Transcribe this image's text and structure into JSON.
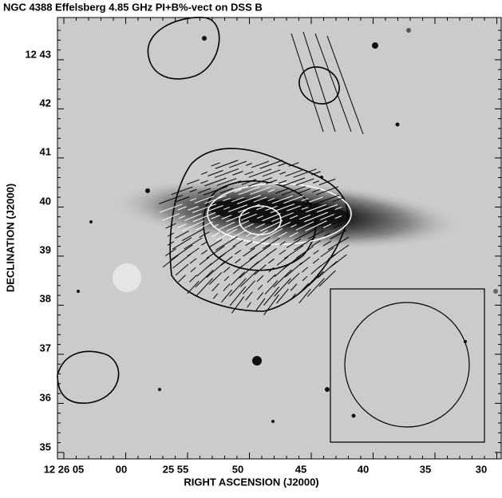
{
  "title": "NGC 4388 Effelsberg 4.85 GHz PI+B%-vect on DSS B",
  "x_axis": {
    "label": "RIGHT ASCENSION (J2000)",
    "ticks": [
      "12 26 05",
      "00",
      "25 55",
      "50",
      "45",
      "40",
      "35",
      "30"
    ]
  },
  "y_axis": {
    "label": "DECLINATION (J2000)",
    "ticks": [
      "12 43",
      "42",
      "41",
      "40",
      "39",
      "38",
      "37",
      "36",
      "35"
    ]
  }
}
